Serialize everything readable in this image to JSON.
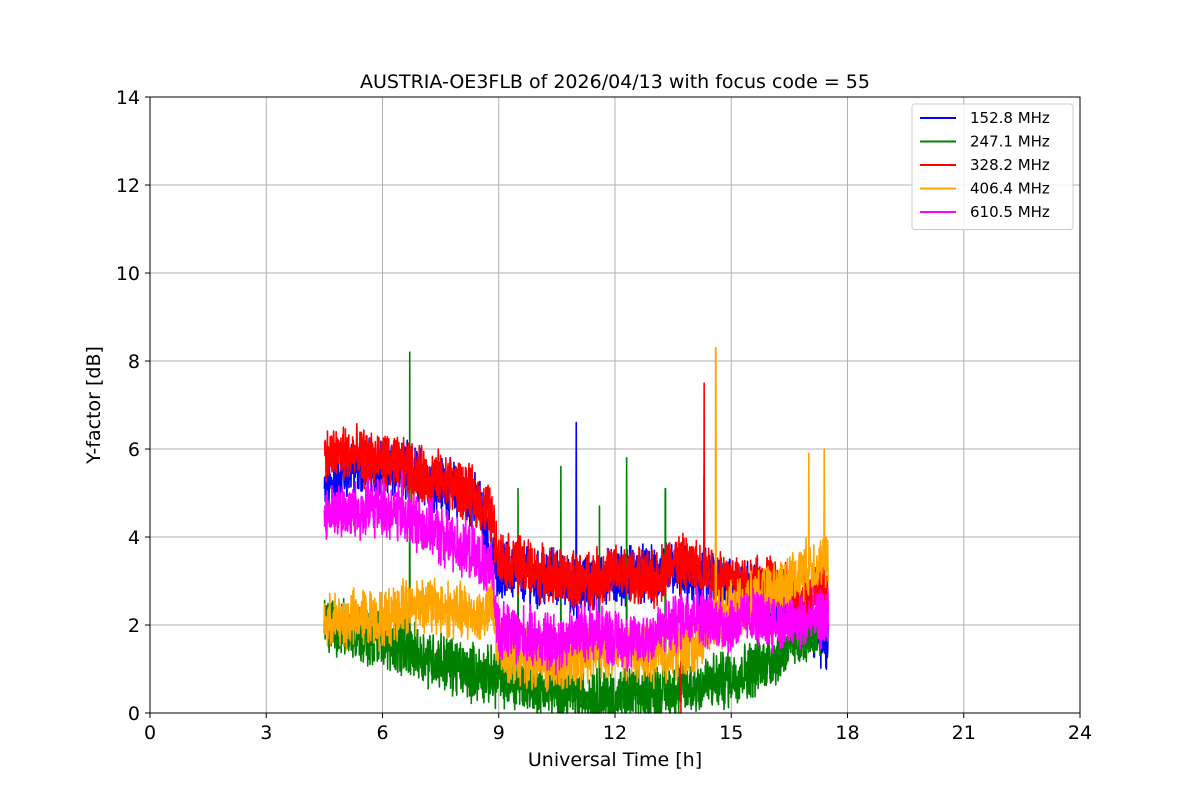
{
  "chart_data": {
    "type": "line",
    "title": "AUSTRIA-OE3FLB of 2026/04/13 with focus code = 55",
    "xlabel": "Universal Time [h]",
    "ylabel": "Y-factor [dB]",
    "xlim": [
      0,
      24
    ],
    "ylim": [
      0,
      14
    ],
    "xticks": [
      0,
      3,
      6,
      9,
      12,
      15,
      18,
      21,
      24
    ],
    "yticks": [
      0,
      2,
      4,
      6,
      8,
      10,
      12,
      14
    ],
    "grid": true,
    "legend_position": "top-right",
    "series": [
      {
        "name": "152.8 MHz",
        "color": "#0000ff",
        "x": [
          4.5,
          5.0,
          5.5,
          6.0,
          6.5,
          7.0,
          7.5,
          8.0,
          8.5,
          8.8,
          9.0,
          9.5,
          10.0,
          10.5,
          11.0,
          11.5,
          12.0,
          12.5,
          13.0,
          13.5,
          14.0,
          14.5,
          15.0,
          15.5,
          16.0,
          16.5,
          17.0,
          17.5
        ],
        "y": [
          5.0,
          5.5,
          5.6,
          5.6,
          5.5,
          5.4,
          5.2,
          5.0,
          4.7,
          3.5,
          3.3,
          3.2,
          3.0,
          3.1,
          2.8,
          3.0,
          3.1,
          3.2,
          3.1,
          3.3,
          3.0,
          3.1,
          2.9,
          2.8,
          2.6,
          2.4,
          2.0,
          1.5
        ],
        "spikes": [
          [
            5.2,
            6.1
          ],
          [
            6.9,
            5.9
          ],
          [
            11.0,
            6.6
          ],
          [
            14.3,
            5.4
          ]
        ]
      },
      {
        "name": "247.1 MHz",
        "color": "#008000",
        "x": [
          4.5,
          5.0,
          5.5,
          6.0,
          6.5,
          7.0,
          7.5,
          8.0,
          8.5,
          9.0,
          9.5,
          10.0,
          10.5,
          11.0,
          11.5,
          12.0,
          12.5,
          13.0,
          13.5,
          14.0,
          14.5,
          15.0,
          15.5,
          16.0,
          16.5,
          17.0,
          17.5
        ],
        "y": [
          2.0,
          1.9,
          1.8,
          1.7,
          1.5,
          1.3,
          1.2,
          1.0,
          0.9,
          0.8,
          0.7,
          0.6,
          0.5,
          0.4,
          0.4,
          0.3,
          0.4,
          0.5,
          0.5,
          0.6,
          0.7,
          0.8,
          1.0,
          1.2,
          1.5,
          1.8,
          2.2
        ],
        "spikes": [
          [
            6.7,
            8.2
          ],
          [
            10.6,
            5.6
          ],
          [
            12.3,
            5.8
          ],
          [
            11.6,
            4.7
          ],
          [
            13.3,
            5.1
          ],
          [
            9.5,
            5.1
          ]
        ]
      },
      {
        "name": "328.2 MHz",
        "color": "#ff0000",
        "x": [
          4.5,
          5.0,
          5.5,
          6.0,
          6.5,
          7.0,
          7.5,
          8.0,
          8.5,
          8.8,
          9.0,
          9.5,
          10.0,
          10.5,
          11.0,
          11.5,
          12.0,
          12.5,
          13.0,
          13.5,
          14.0,
          14.5,
          15.0,
          15.5,
          16.0,
          16.5,
          17.0,
          17.5
        ],
        "y": [
          5.8,
          5.9,
          5.8,
          5.7,
          5.6,
          5.4,
          5.3,
          5.1,
          4.8,
          4.5,
          3.5,
          3.4,
          3.2,
          3.1,
          3.0,
          3.1,
          3.2,
          3.1,
          3.0,
          3.5,
          3.3,
          3.2,
          3.0,
          2.9,
          2.9,
          2.8,
          2.7,
          2.7
        ],
        "spikes": [
          [
            14.3,
            7.5
          ]
        ],
        "dips": [
          [
            13.7,
            0.0
          ]
        ]
      },
      {
        "name": "406.4 MHz",
        "color": "#ffa500",
        "x": [
          4.5,
          5.0,
          5.5,
          6.0,
          6.5,
          7.0,
          7.5,
          8.0,
          8.5,
          8.8,
          9.0,
          9.5,
          10.0,
          10.5,
          11.0,
          11.5,
          12.0,
          12.5,
          13.0,
          13.5,
          14.0,
          14.5,
          15.0,
          15.5,
          16.0,
          16.5,
          17.0,
          17.5
        ],
        "y": [
          2.0,
          2.1,
          2.2,
          2.1,
          2.4,
          2.5,
          2.4,
          2.3,
          2.2,
          2.4,
          1.5,
          1.3,
          1.2,
          1.1,
          1.2,
          1.4,
          1.5,
          1.4,
          1.3,
          1.4,
          1.5,
          2.0,
          2.3,
          2.5,
          2.7,
          3.0,
          3.3,
          3.5
        ],
        "spikes": [
          [
            14.6,
            8.3
          ],
          [
            17.0,
            5.9
          ],
          [
            17.4,
            6.0
          ]
        ]
      },
      {
        "name": "610.5 MHz",
        "color": "#ff00ff",
        "x": [
          4.5,
          5.0,
          5.5,
          6.0,
          6.5,
          7.0,
          7.5,
          8.0,
          8.5,
          8.8,
          9.0,
          9.5,
          10.0,
          10.5,
          11.0,
          11.5,
          12.0,
          12.5,
          13.0,
          13.5,
          14.0,
          14.5,
          15.0,
          15.5,
          16.0,
          16.5,
          17.0,
          17.5
        ],
        "y": [
          4.5,
          4.6,
          4.6,
          4.7,
          4.5,
          4.3,
          4.0,
          3.8,
          3.5,
          3.2,
          1.9,
          1.8,
          1.7,
          1.6,
          1.8,
          1.9,
          1.7,
          1.6,
          1.8,
          2.0,
          2.3,
          2.1,
          2.0,
          2.2,
          2.1,
          2.0,
          2.1,
          2.2
        ],
        "spikes": [
          [
            6.5,
            5.5
          ]
        ]
      }
    ]
  }
}
